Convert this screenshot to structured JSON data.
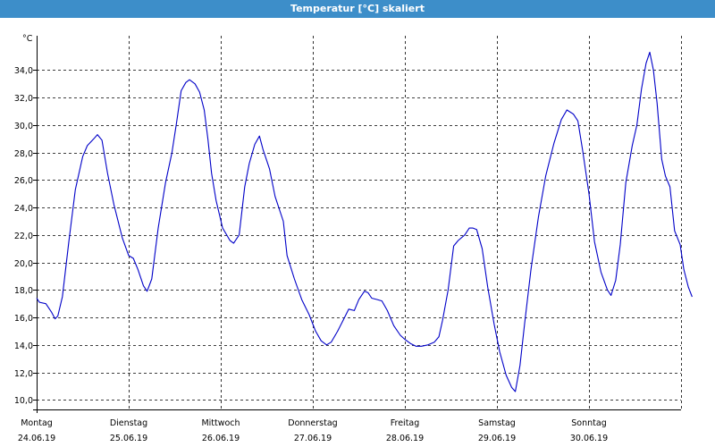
{
  "window": {
    "title": "Temperatur [°C] skaliert"
  },
  "chart_data": {
    "type": "line",
    "ylabel": "°C",
    "ylim": [
      9.3,
      36.5
    ],
    "yticks": [
      10.0,
      12.0,
      14.0,
      16.0,
      18.0,
      20.0,
      22.0,
      24.0,
      26.0,
      28.0,
      30.0,
      32.0,
      34.0
    ],
    "ytick_labels": [
      "10,0",
      "12,0",
      "14,0",
      "16,0",
      "18,0",
      "20,0",
      "22,0",
      "24,0",
      "26,0",
      "28,0",
      "30,0",
      "32,0",
      "34,0"
    ],
    "xlim": [
      0,
      7
    ],
    "day_labels": [
      {
        "day": "Montag",
        "date": "24.06.19"
      },
      {
        "day": "Dienstag",
        "date": "25.06.19"
      },
      {
        "day": "Mittwoch",
        "date": "26.06.19"
      },
      {
        "day": "Donnerstag",
        "date": "27.06.19"
      },
      {
        "day": "Freitag",
        "date": "28.06.19"
      },
      {
        "day": "Samstag",
        "date": "29.06.19"
      },
      {
        "day": "Sonntag",
        "date": "30.06.19"
      }
    ],
    "grid": true,
    "line_color": "#0000c8",
    "series": [
      {
        "points": [
          [
            0.0,
            17.4
          ],
          [
            0.03,
            17.1
          ],
          [
            0.1,
            17.0
          ],
          [
            0.16,
            16.4
          ],
          [
            0.2,
            15.9
          ],
          [
            0.23,
            16.1
          ],
          [
            0.28,
            17.5
          ],
          [
            0.35,
            21.5
          ],
          [
            0.42,
            25.3
          ],
          [
            0.5,
            27.7
          ],
          [
            0.55,
            28.5
          ],
          [
            0.62,
            29.0
          ],
          [
            0.66,
            29.3
          ],
          [
            0.71,
            28.9
          ],
          [
            0.77,
            26.5
          ],
          [
            0.84,
            24.2
          ],
          [
            0.93,
            21.8
          ],
          [
            1.0,
            20.5
          ],
          [
            1.05,
            20.3
          ],
          [
            1.1,
            19.5
          ],
          [
            1.16,
            18.3
          ],
          [
            1.2,
            17.9
          ],
          [
            1.25,
            18.8
          ],
          [
            1.32,
            22.5
          ],
          [
            1.4,
            25.8
          ],
          [
            1.47,
            28.0
          ],
          [
            1.52,
            30.2
          ],
          [
            1.57,
            32.5
          ],
          [
            1.62,
            33.1
          ],
          [
            1.66,
            33.3
          ],
          [
            1.72,
            33.0
          ],
          [
            1.77,
            32.4
          ],
          [
            1.82,
            31.1
          ],
          [
            1.86,
            29.0
          ],
          [
            1.9,
            26.5
          ],
          [
            1.95,
            24.5
          ],
          [
            2.02,
            22.5
          ],
          [
            2.1,
            21.6
          ],
          [
            2.14,
            21.4
          ],
          [
            2.2,
            22.0
          ],
          [
            2.26,
            25.5
          ],
          [
            2.31,
            27.2
          ],
          [
            2.37,
            28.6
          ],
          [
            2.42,
            29.2
          ],
          [
            2.46,
            28.2
          ],
          [
            2.53,
            26.8
          ],
          [
            2.59,
            24.8
          ],
          [
            2.68,
            23.0
          ],
          [
            2.72,
            20.5
          ],
          [
            2.8,
            18.8
          ],
          [
            2.88,
            17.3
          ],
          [
            2.96,
            16.2
          ],
          [
            3.03,
            15.0
          ],
          [
            3.09,
            14.3
          ],
          [
            3.15,
            14.0
          ],
          [
            3.2,
            14.2
          ],
          [
            3.27,
            15.0
          ],
          [
            3.33,
            15.8
          ],
          [
            3.39,
            16.6
          ],
          [
            3.45,
            16.5
          ],
          [
            3.5,
            17.3
          ],
          [
            3.56,
            17.9
          ],
          [
            3.6,
            17.8
          ],
          [
            3.64,
            17.4
          ],
          [
            3.7,
            17.3
          ],
          [
            3.75,
            17.2
          ],
          [
            3.81,
            16.5
          ],
          [
            3.88,
            15.4
          ],
          [
            3.95,
            14.7
          ],
          [
            4.0,
            14.4
          ],
          [
            4.06,
            14.1
          ],
          [
            4.12,
            13.9
          ],
          [
            4.18,
            13.9
          ],
          [
            4.25,
            14.0
          ],
          [
            4.32,
            14.2
          ],
          [
            4.37,
            14.6
          ],
          [
            4.41,
            15.8
          ],
          [
            4.47,
            18.0
          ],
          [
            4.53,
            21.2
          ],
          [
            4.58,
            21.6
          ],
          [
            4.65,
            22.0
          ],
          [
            4.7,
            22.5
          ],
          [
            4.74,
            22.5
          ],
          [
            4.78,
            22.4
          ],
          [
            4.84,
            21.0
          ],
          [
            4.9,
            18.2
          ],
          [
            4.97,
            15.5
          ],
          [
            5.03,
            13.5
          ],
          [
            5.1,
            11.8
          ],
          [
            5.16,
            10.9
          ],
          [
            5.2,
            10.6
          ],
          [
            5.25,
            12.5
          ],
          [
            5.3,
            15.5
          ],
          [
            5.37,
            19.5
          ],
          [
            5.45,
            23.3
          ],
          [
            5.53,
            26.3
          ],
          [
            5.62,
            28.7
          ],
          [
            5.7,
            30.4
          ],
          [
            5.76,
            31.1
          ],
          [
            5.83,
            30.8
          ],
          [
            5.88,
            30.3
          ],
          [
            5.93,
            28.2
          ],
          [
            6.0,
            25.0
          ],
          [
            6.06,
            21.5
          ],
          [
            6.13,
            19.3
          ],
          [
            6.2,
            18.0
          ],
          [
            6.24,
            17.6
          ],
          [
            6.29,
            18.7
          ],
          [
            6.34,
            21.3
          ],
          [
            6.4,
            25.8
          ],
          [
            6.47,
            28.5
          ],
          [
            6.52,
            30.0
          ],
          [
            6.57,
            32.6
          ],
          [
            6.62,
            34.5
          ],
          [
            6.66,
            35.3
          ],
          [
            6.7,
            34.0
          ],
          [
            6.74,
            31.6
          ],
          [
            6.79,
            27.5
          ],
          [
            6.83,
            26.3
          ],
          [
            6.88,
            25.5
          ],
          [
            6.93,
            22.3
          ],
          [
            6.99,
            21.3
          ],
          [
            7.03,
            19.5
          ],
          [
            7.08,
            18.2
          ],
          [
            7.12,
            17.5
          ]
        ]
      }
    ]
  }
}
